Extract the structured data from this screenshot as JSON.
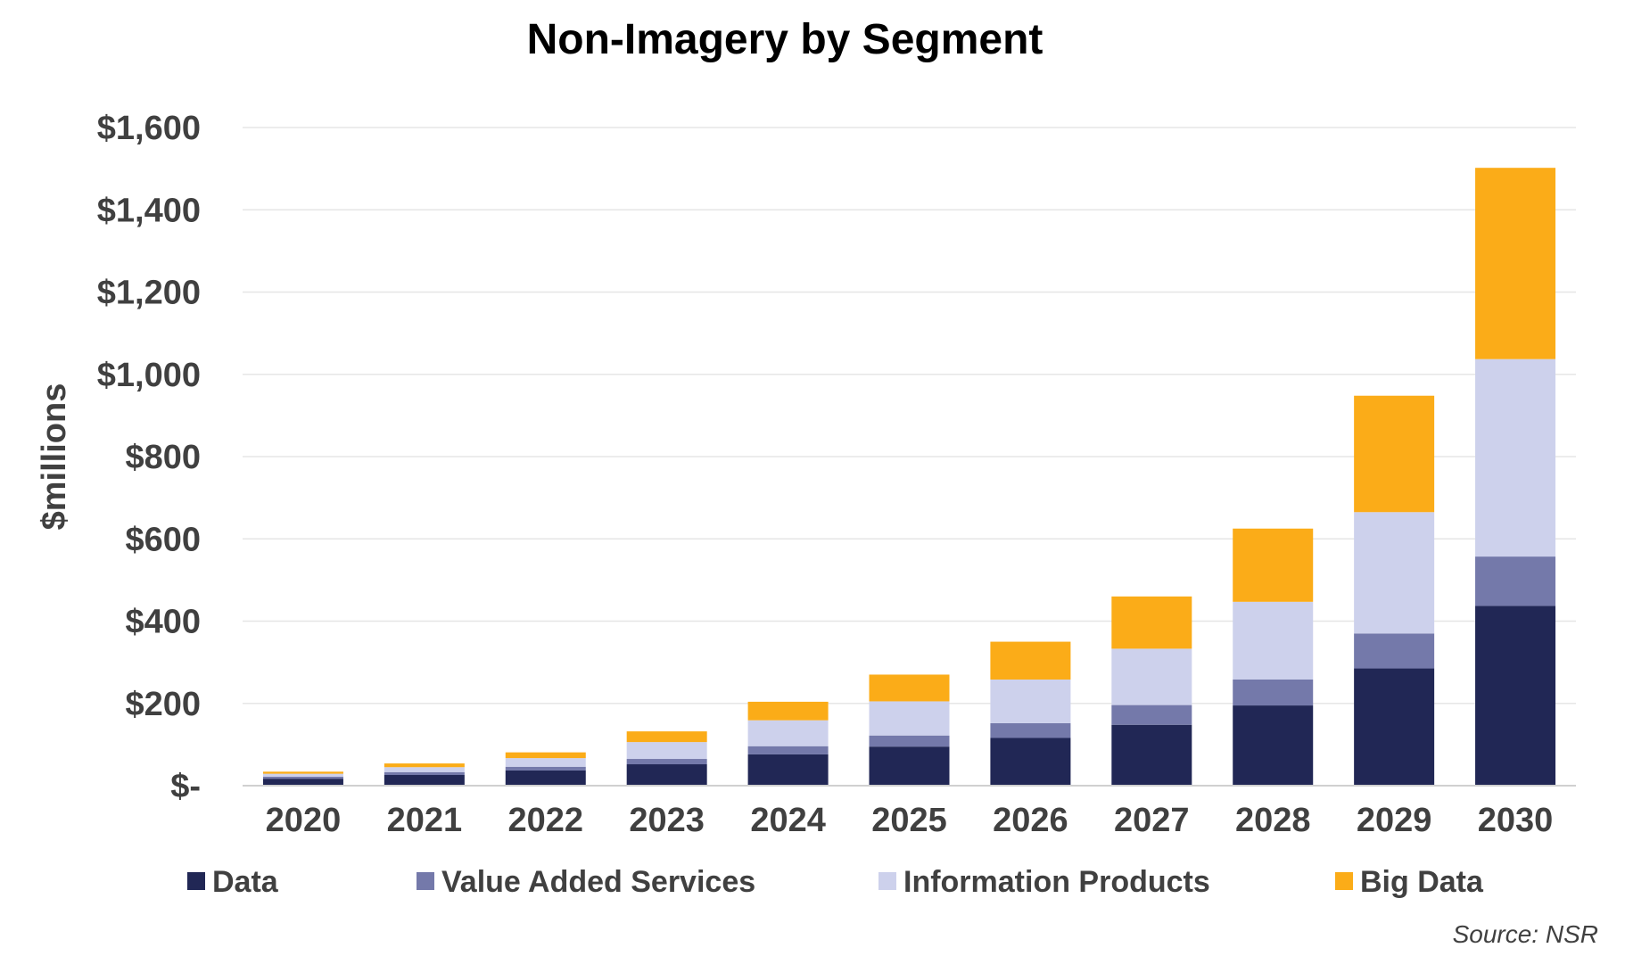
{
  "chart_data": {
    "type": "bar",
    "stacked": true,
    "title": "Non-Imagery by Segment",
    "xlabel": "",
    "ylabel": "$millions",
    "categories": [
      "2020",
      "2021",
      "2022",
      "2023",
      "2024",
      "2025",
      "2026",
      "2027",
      "2028",
      "2029",
      "2030"
    ],
    "series": [
      {
        "name": "Data",
        "color": "#212755",
        "values": [
          17,
          26,
          37,
          52,
          76,
          95,
          116,
          148,
          195,
          285,
          437
        ]
      },
      {
        "name": "Value Added Services",
        "color": "#7479aa",
        "values": [
          5,
          7,
          9,
          13,
          20,
          27,
          36,
          48,
          63,
          85,
          120
        ]
      },
      {
        "name": "Information Products",
        "color": "#cdd1ec",
        "values": [
          7,
          12,
          21,
          41,
          63,
          83,
          106,
          137,
          189,
          295,
          480
        ]
      },
      {
        "name": "Big Data",
        "color": "#fbac18",
        "values": [
          5,
          9,
          14,
          26,
          45,
          65,
          92,
          127,
          178,
          283,
          465
        ]
      }
    ],
    "ylim": [
      0,
      1600
    ],
    "yticks": [
      0,
      200,
      400,
      600,
      800,
      1000,
      1200,
      1400,
      1600
    ],
    "ytick_labels": [
      "$-",
      "$200",
      "$400",
      "$600",
      "$800",
      "$1,000",
      "$1,200",
      "$1,400",
      "$1,600"
    ],
    "grid": true,
    "legend_position": "bottom",
    "annotations": [
      "Source: NSR"
    ]
  }
}
